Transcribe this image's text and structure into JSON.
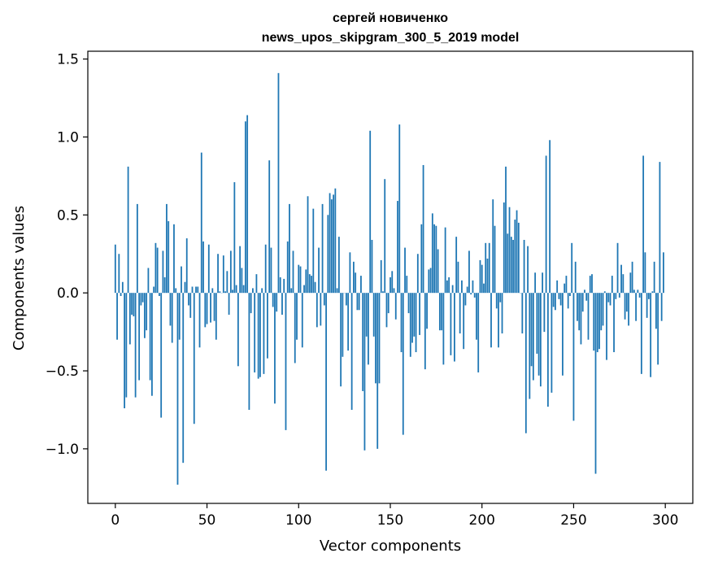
{
  "chart_data": {
    "type": "bar",
    "title_line1": "сергей новиченко",
    "title_line2": "news_upos_skipgram_300_5_2019 model",
    "xlabel": "Vector components",
    "ylabel": "Components values",
    "xlim": [
      -15,
      315
    ],
    "ylim": [
      -1.35,
      1.55
    ],
    "xticks": [
      0,
      50,
      100,
      150,
      200,
      250,
      300
    ],
    "yticks": [
      -1.0,
      -0.5,
      0.0,
      0.5,
      1.0,
      1.5
    ],
    "bar_color": "#1f77b4",
    "grid": false,
    "values": [
      0.31,
      -0.3,
      0.25,
      -0.02,
      0.07,
      -0.74,
      -0.67,
      0.81,
      -0.33,
      -0.14,
      -0.15,
      -0.67,
      0.57,
      -0.56,
      -0.08,
      -0.06,
      -0.29,
      -0.24,
      0.16,
      -0.56,
      -0.66,
      0.04,
      0.32,
      0.29,
      -0.02,
      -0.8,
      0.27,
      0.1,
      0.57,
      0.46,
      -0.21,
      -0.32,
      0.44,
      0.03,
      -1.23,
      -0.3,
      0.17,
      -1.09,
      0.07,
      0.35,
      -0.08,
      -0.16,
      0.04,
      -0.84,
      0.04,
      0.04,
      -0.35,
      0.9,
      0.33,
      -0.22,
      -0.2,
      0.31,
      -0.19,
      0.03,
      -0.18,
      -0.3,
      0.25,
      0.01,
      0.0,
      0.24,
      0.01,
      0.14,
      -0.14,
      0.27,
      0.02,
      0.71,
      0.05,
      -0.47,
      0.3,
      0.16,
      0.05,
      1.1,
      1.14,
      -0.75,
      -0.13,
      0.03,
      -0.51,
      0.12,
      -0.55,
      -0.54,
      0.03,
      -0.52,
      0.31,
      -0.42,
      0.85,
      0.29,
      -0.09,
      -0.71,
      -0.12,
      1.41,
      0.1,
      -0.14,
      0.09,
      -0.88,
      0.33,
      0.57,
      0.03,
      0.27,
      -0.45,
      -0.3,
      0.18,
      0.17,
      -0.35,
      0.05,
      0.15,
      0.62,
      0.12,
      0.11,
      0.54,
      0.07,
      -0.22,
      0.29,
      -0.21,
      0.57,
      -0.08,
      -1.14,
      0.5,
      0.64,
      0.6,
      0.63,
      0.67,
      0.03,
      0.36,
      -0.6,
      -0.41,
      0.0,
      -0.08,
      -0.37,
      0.26,
      -0.75,
      0.2,
      0.13,
      -0.11,
      -0.11,
      0.11,
      -0.63,
      -1.01,
      -0.28,
      -0.46,
      1.04,
      0.34,
      -0.28,
      -0.58,
      -1.0,
      -0.58,
      0.21,
      0.01,
      0.73,
      -0.22,
      -0.13,
      0.1,
      0.14,
      0.03,
      -0.17,
      0.59,
      1.08,
      -0.38,
      -0.91,
      0.29,
      0.11,
      -0.13,
      -0.41,
      -0.32,
      -0.28,
      -0.38,
      0.25,
      -0.27,
      0.44,
      0.82,
      -0.49,
      -0.23,
      0.15,
      0.16,
      0.51,
      0.44,
      0.43,
      0.28,
      -0.24,
      -0.24,
      -0.46,
      0.42,
      0.08,
      0.1,
      -0.4,
      0.05,
      -0.44,
      0.36,
      0.2,
      -0.26,
      0.08,
      -0.36,
      -0.08,
      0.04,
      0.27,
      -0.01,
      0.08,
      -0.03,
      -0.3,
      -0.51,
      0.21,
      0.18,
      0.06,
      0.32,
      0.22,
      0.32,
      -0.35,
      0.6,
      0.43,
      -0.1,
      -0.35,
      -0.06,
      -0.26,
      0.58,
      0.81,
      0.38,
      0.55,
      0.36,
      0.34,
      0.47,
      0.53,
      0.45,
      0.0,
      -0.26,
      0.34,
      -0.9,
      0.3,
      -0.68,
      -0.47,
      -0.56,
      0.13,
      -0.39,
      -0.53,
      -0.6,
      0.13,
      -0.25,
      0.88,
      -0.73,
      0.98,
      -0.64,
      -0.09,
      -0.11,
      0.08,
      -0.04,
      -0.08,
      -0.53,
      0.06,
      0.11,
      -0.1,
      -0.02,
      0.32,
      -0.82,
      0.2,
      -0.18,
      -0.24,
      -0.33,
      -0.12,
      0.02,
      -0.05,
      -0.3,
      0.11,
      0.12,
      -0.37,
      -1.16,
      -0.38,
      -0.36,
      -0.24,
      -0.21,
      0.01,
      -0.43,
      -0.06,
      -0.08,
      0.11,
      -0.38,
      -0.04,
      0.32,
      -0.03,
      0.18,
      0.12,
      -0.17,
      -0.12,
      -0.21,
      0.13,
      0.2,
      0.02,
      -0.18,
      0.02,
      -0.03,
      -0.52,
      0.88,
      0.26,
      -0.16,
      -0.04,
      -0.54,
      0.01,
      0.2,
      -0.23,
      -0.46,
      0.84,
      -0.18,
      0.26
    ]
  }
}
